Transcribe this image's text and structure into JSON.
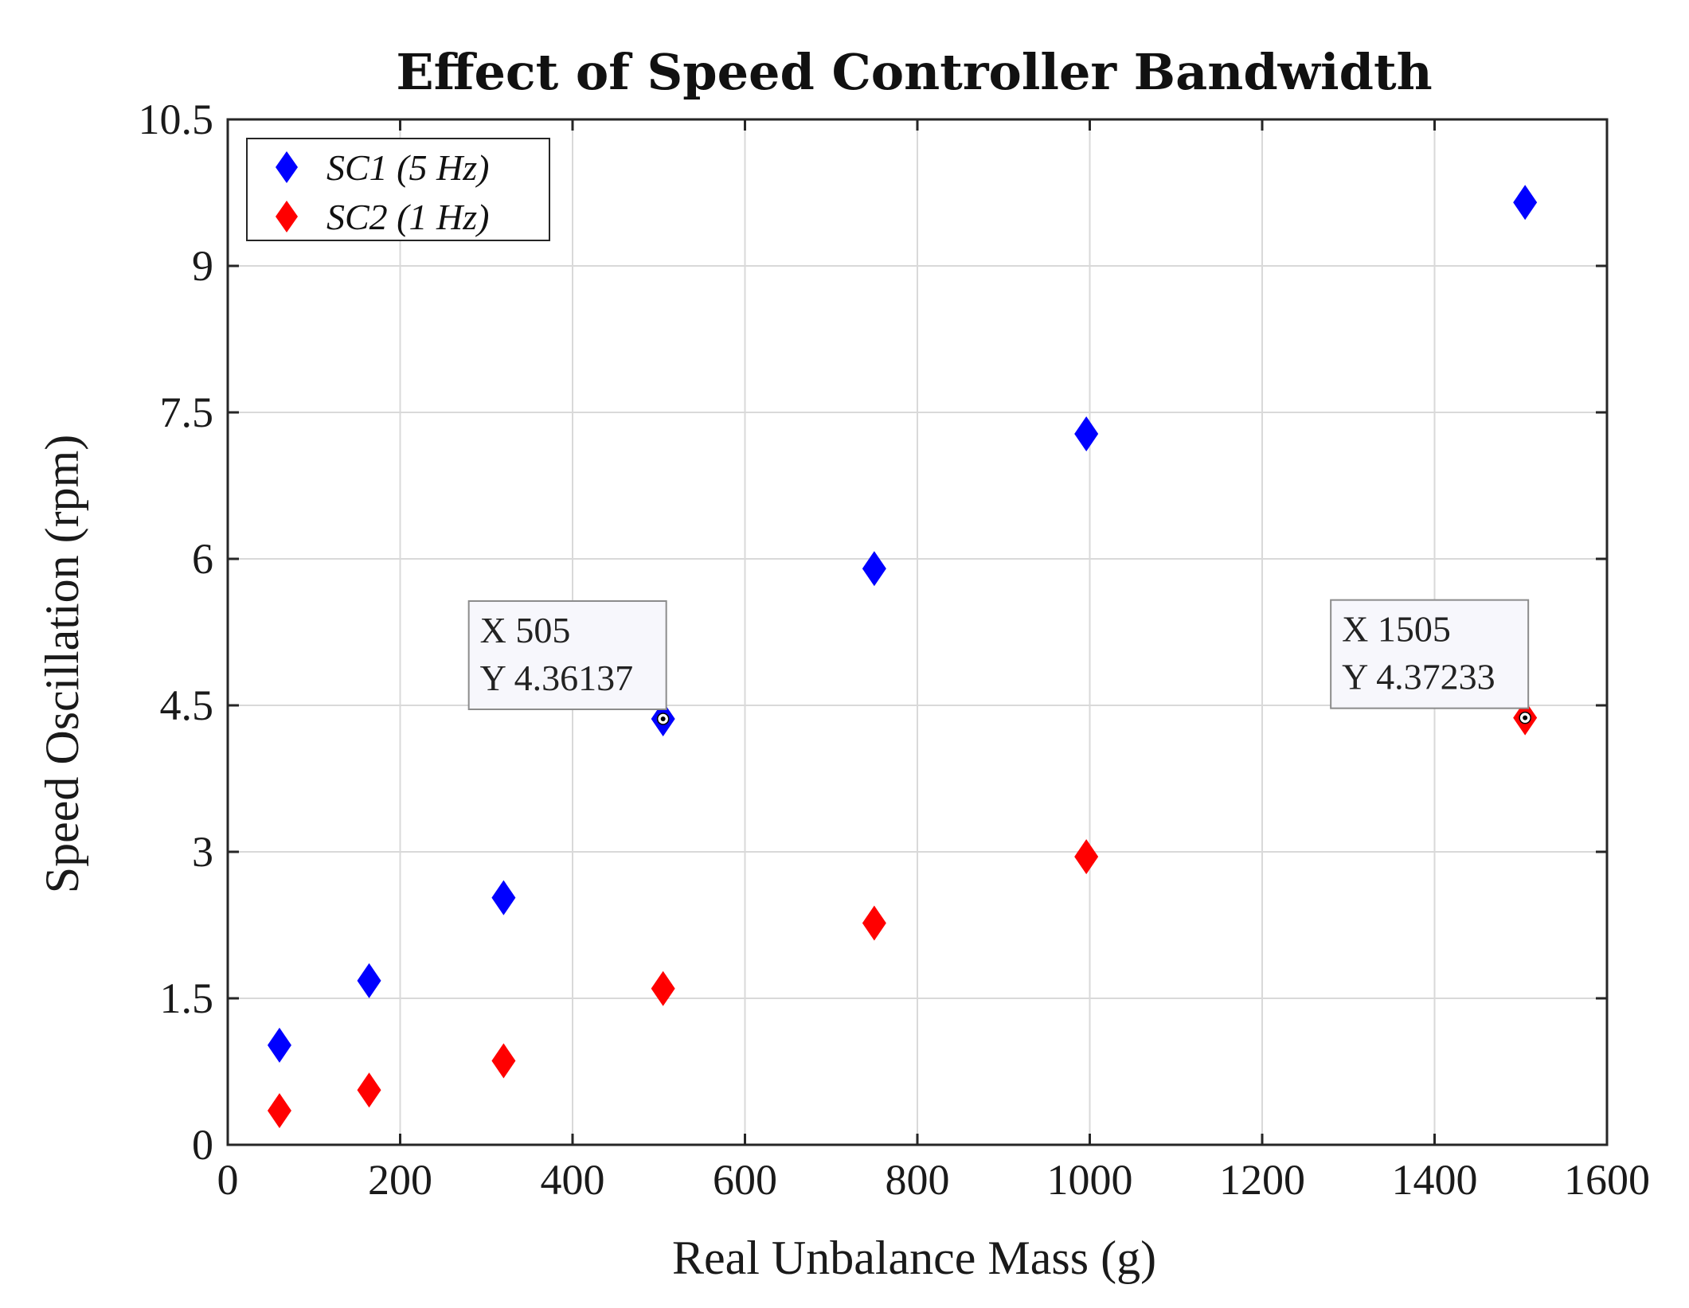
{
  "chart_data": {
    "type": "scatter",
    "title": "Effect of Speed Controller Bandwidth",
    "xlabel": "Real Unbalance Mass (g)",
    "ylabel": "Speed Oscillation (rpm)",
    "xlim": [
      0,
      1600
    ],
    "ylim": [
      0,
      10.5
    ],
    "xticks": [
      0,
      200,
      400,
      600,
      800,
      1000,
      1200,
      1400,
      1600
    ],
    "xtick_labels": [
      "0",
      "200",
      "400",
      "600",
      "800",
      "1000",
      "1200",
      "1400",
      "1600"
    ],
    "yticks": [
      0,
      1.5,
      3,
      4.5,
      6,
      7.5,
      9,
      10.5
    ],
    "ytick_labels": [
      "0",
      "1.5",
      "3",
      "4.5",
      "6",
      "7.5",
      "9",
      "10.5"
    ],
    "grid": true,
    "legend_position": "top-left",
    "marker": "diamond",
    "series": [
      {
        "name": "SC1 (5 Hz)",
        "color": "#0000ff",
        "x": [
          60,
          164,
          320,
          505,
          750,
          996,
          1505
        ],
        "y": [
          1.02,
          1.68,
          2.53,
          4.36137,
          5.9,
          7.28,
          9.65
        ]
      },
      {
        "name": "SC2 (1 Hz)",
        "color": "#ff0000",
        "x": [
          60,
          164,
          320,
          505,
          750,
          996,
          1505
        ],
        "y": [
          0.35,
          0.56,
          0.86,
          1.6,
          2.27,
          2.95,
          4.37233
        ]
      }
    ],
    "annotations": [
      {
        "x_label": "X 505",
        "y_label": "Y 4.36137",
        "x": 505,
        "y": 4.36137,
        "series": "SC1 (5 Hz)"
      },
      {
        "x_label": "X 1505",
        "y_label": "Y 4.37233",
        "x": 1505,
        "y": 4.37233,
        "series": "SC2 (1 Hz)"
      }
    ]
  }
}
